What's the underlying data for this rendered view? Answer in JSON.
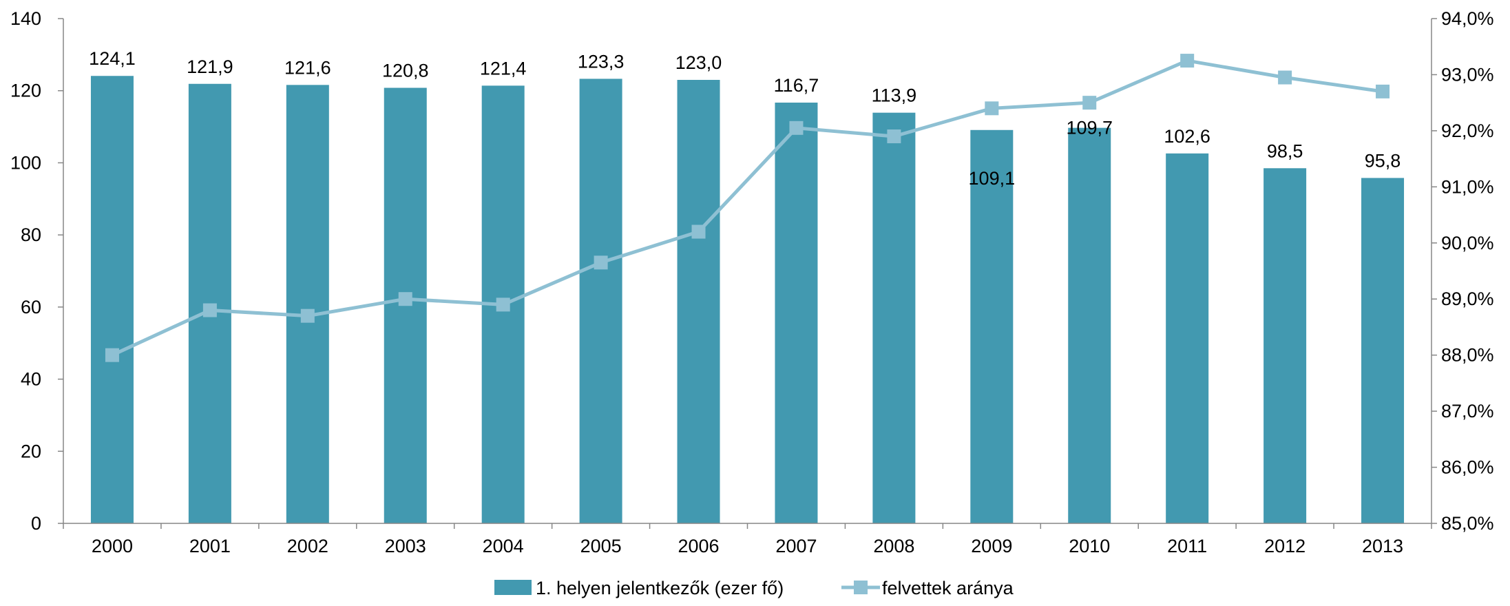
{
  "chart_data": {
    "type": "bar",
    "categories": [
      "2000",
      "2001",
      "2002",
      "2003",
      "2004",
      "2005",
      "2006",
      "2007",
      "2008",
      "2009",
      "2010",
      "2011",
      "2012",
      "2013"
    ],
    "series": [
      {
        "name": "1. helyen jelentkezők (ezer fő)",
        "type": "bar",
        "axis": "left",
        "color": "#4299b0",
        "values": [
          124.1,
          121.9,
          121.6,
          120.8,
          121.4,
          123.3,
          123.0,
          116.7,
          113.9,
          109.1,
          109.7,
          102.6,
          98.5,
          95.8
        ],
        "labels": [
          "124,1",
          "121,9",
          "121,6",
          "120,8",
          "121,4",
          "123,3",
          "123,0",
          "116,7",
          "113,9",
          "109,1",
          "109,7",
          "102,6",
          "98,5",
          "95,8"
        ]
      },
      {
        "name": "felvettek aránya",
        "type": "line",
        "axis": "right",
        "color": "#8ec0d3",
        "marker": "square",
        "values": [
          88.0,
          88.8,
          88.7,
          89.0,
          88.9,
          89.65,
          90.2,
          92.05,
          91.9,
          92.4,
          92.5,
          93.25,
          92.95,
          92.7
        ]
      }
    ],
    "y_left": {
      "min": 0,
      "max": 140,
      "ticks": [
        0,
        20,
        40,
        60,
        80,
        100,
        120,
        140
      ],
      "tick_labels": [
        "0",
        "20",
        "40",
        "60",
        "80",
        "100",
        "120",
        "140"
      ]
    },
    "y_right": {
      "min": 85,
      "max": 94,
      "ticks": [
        85,
        86,
        87,
        88,
        89,
        90,
        91,
        92,
        93,
        94
      ],
      "tick_labels": [
        "85,0%",
        "86,0%",
        "87,0%",
        "88,0%",
        "89,0%",
        "90,0%",
        "91,0%",
        "92,0%",
        "93,0%",
        "94,0%"
      ]
    },
    "legend": {
      "position": "bottom",
      "items": [
        "1. helyen jelentkezők (ezer fő)",
        "felvettek aránya"
      ]
    },
    "grid": false,
    "title": "",
    "xlabel": "",
    "ylabel": ""
  }
}
